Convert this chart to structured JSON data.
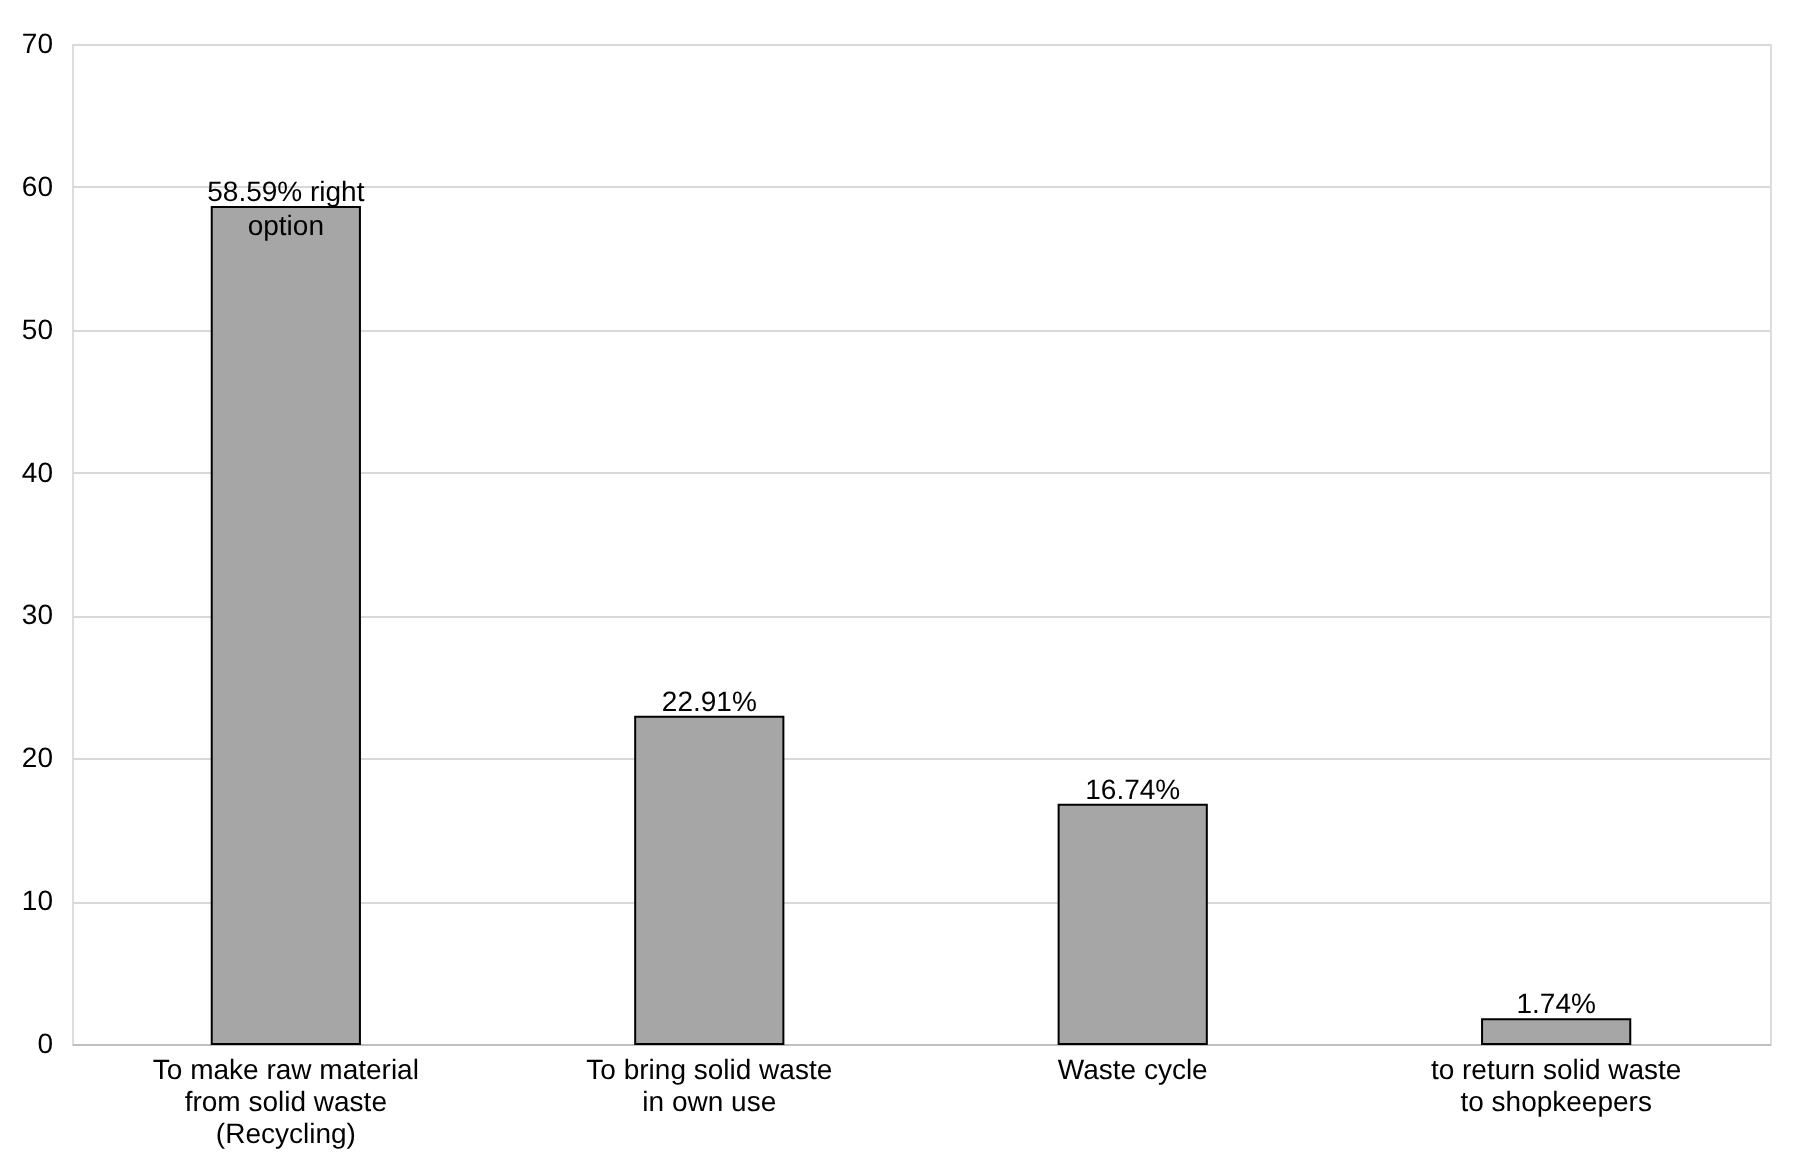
{
  "chart_data": {
    "type": "bar",
    "categories": [
      "To make raw material from solid waste (Recycling)",
      "To bring solid waste in own use",
      "Waste cycle",
      "to return solid waste to shopkeepers"
    ],
    "values": [
      58.59,
      22.91,
      16.74,
      1.74
    ],
    "value_labels": [
      "58.59% right option",
      "22.91%",
      "16.74%",
      "1.74%"
    ],
    "color": "#a6a6a6",
    "ylim": [
      0,
      70
    ],
    "yticks": [
      0,
      10,
      20,
      30,
      40,
      50,
      60,
      70
    ],
    "grid": "y"
  }
}
